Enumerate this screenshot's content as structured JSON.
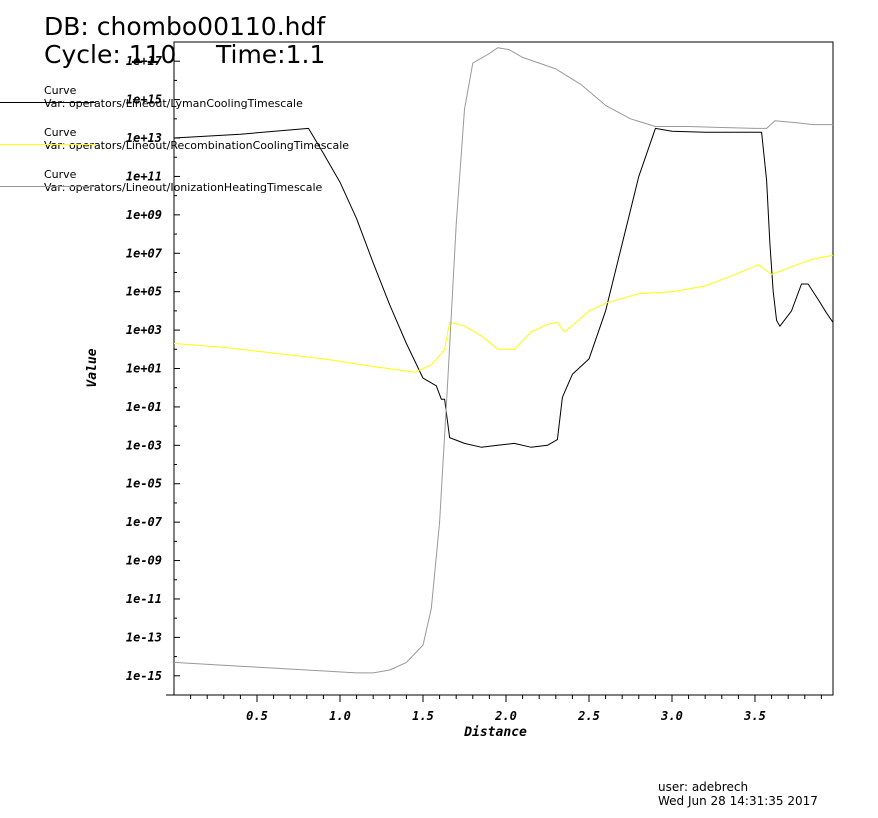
{
  "header": {
    "db": "DB: chombo00110.hdf",
    "cycle": "Cycle: 110",
    "time": "Time:1.1"
  },
  "legend": [
    {
      "label": "Curve",
      "var": "Var: operators/Lineout/LymanCoolingTimescale",
      "color": "#000000"
    },
    {
      "label": "Curve",
      "var": "Var: operators/Lineout/RecombinationCoolingTimescale",
      "color": "#ffff00"
    },
    {
      "label": "Curve",
      "var": "Var: operators/Lineout/IonizationHeatingTimescale",
      "color": "#999999"
    }
  ],
  "footer": {
    "user": "user: adebrech",
    "date": "Wed Jun 28 14:31:35 2017"
  },
  "chart_data": {
    "type": "line",
    "xlabel": "Distance",
    "ylabel": "Value",
    "xlim": [
      0.0,
      3.97
    ],
    "ylim_log10": [
      -16,
      18
    ],
    "yscale": "log",
    "x_ticks": [
      0.5,
      1.0,
      1.5,
      2.0,
      2.5,
      3.0,
      3.5
    ],
    "x_tick_labels": [
      "0.5",
      "1.0",
      "1.5",
      "2.0",
      "2.5",
      "3.0",
      "3.5"
    ],
    "y_ticks_log10": [
      -15,
      -13,
      -11,
      -9,
      -7,
      -5,
      -3,
      -1,
      1,
      3,
      5,
      7,
      9,
      11,
      13,
      15,
      17
    ],
    "y_tick_labels": [
      "1e-15",
      "1e-13",
      "1e-11",
      "1e-09",
      "1e-07",
      "1e-05",
      "1e-03",
      "1e-01",
      "1e+01",
      "1e+03",
      "1e+05",
      "1e+07",
      "1e+09",
      "1e+11",
      "1e+13",
      "1e+15",
      "1e+17"
    ],
    "grid": false,
    "series": [
      {
        "var": "LymanCoolingTimescale",
        "color": "#000000",
        "points": [
          [
            0.0,
            13.0
          ],
          [
            0.4,
            13.2
          ],
          [
            0.81,
            13.5
          ],
          [
            0.9,
            12.2
          ],
          [
            1.0,
            10.7
          ],
          [
            1.1,
            8.8
          ],
          [
            1.2,
            6.5
          ],
          [
            1.3,
            4.3
          ],
          [
            1.4,
            2.3
          ],
          [
            1.5,
            0.5
          ],
          [
            1.58,
            0.1
          ],
          [
            1.61,
            -0.6
          ],
          [
            1.63,
            -0.6
          ],
          [
            1.66,
            -2.6
          ],
          [
            1.75,
            -2.9
          ],
          [
            1.85,
            -3.1
          ],
          [
            1.95,
            -3.0
          ],
          [
            2.05,
            -2.9
          ],
          [
            2.15,
            -3.1
          ],
          [
            2.25,
            -3.0
          ],
          [
            2.31,
            -2.7
          ],
          [
            2.34,
            -0.5
          ],
          [
            2.4,
            0.7
          ],
          [
            2.45,
            1.1
          ],
          [
            2.5,
            1.5
          ],
          [
            2.6,
            4.0
          ],
          [
            2.7,
            7.5
          ],
          [
            2.8,
            11.0
          ],
          [
            2.9,
            13.5
          ],
          [
            3.0,
            13.35
          ],
          [
            3.2,
            13.3
          ],
          [
            3.4,
            13.3
          ],
          [
            3.54,
            13.3
          ],
          [
            3.57,
            10.8
          ],
          [
            3.59,
            7.5
          ],
          [
            3.61,
            5.0
          ],
          [
            3.63,
            3.5
          ],
          [
            3.65,
            3.2
          ],
          [
            3.72,
            4.0
          ],
          [
            3.78,
            5.4
          ],
          [
            3.82,
            5.4
          ],
          [
            3.88,
            4.6
          ],
          [
            3.93,
            3.9
          ],
          [
            3.97,
            3.4
          ]
        ]
      },
      {
        "var": "RecombinationCoolingTimescale",
        "color": "#ffff00",
        "points": [
          [
            0.0,
            2.3
          ],
          [
            0.3,
            2.1
          ],
          [
            0.6,
            1.8
          ],
          [
            0.9,
            1.5
          ],
          [
            1.2,
            1.1
          ],
          [
            1.45,
            0.8
          ],
          [
            1.55,
            1.2
          ],
          [
            1.63,
            2.0
          ],
          [
            1.66,
            3.4
          ],
          [
            1.75,
            3.2
          ],
          [
            1.85,
            2.7
          ],
          [
            1.95,
            2.0
          ],
          [
            2.05,
            2.0
          ],
          [
            2.15,
            2.9
          ],
          [
            2.25,
            3.3
          ],
          [
            2.31,
            3.4
          ],
          [
            2.35,
            2.9
          ],
          [
            2.42,
            3.4
          ],
          [
            2.5,
            4.0
          ],
          [
            2.6,
            4.4
          ],
          [
            2.8,
            4.9
          ],
          [
            3.0,
            5.0
          ],
          [
            3.2,
            5.3
          ],
          [
            3.35,
            5.8
          ],
          [
            3.52,
            6.4
          ],
          [
            3.6,
            5.9
          ],
          [
            3.75,
            6.4
          ],
          [
            3.85,
            6.7
          ],
          [
            3.97,
            6.9
          ]
        ]
      },
      {
        "var": "IonizationHeatingTimescale",
        "color": "#999999",
        "points": [
          [
            0.0,
            -14.3
          ],
          [
            0.4,
            -14.5
          ],
          [
            0.8,
            -14.7
          ],
          [
            1.1,
            -14.85
          ],
          [
            1.2,
            -14.85
          ],
          [
            1.3,
            -14.7
          ],
          [
            1.4,
            -14.3
          ],
          [
            1.5,
            -13.4
          ],
          [
            1.55,
            -11.5
          ],
          [
            1.6,
            -7.0
          ],
          [
            1.65,
            0.5
          ],
          [
            1.7,
            8.5
          ],
          [
            1.75,
            14.5
          ],
          [
            1.8,
            16.9
          ],
          [
            1.9,
            17.4
          ],
          [
            1.95,
            17.7
          ],
          [
            2.02,
            17.6
          ],
          [
            2.1,
            17.2
          ],
          [
            2.3,
            16.6
          ],
          [
            2.45,
            15.8
          ],
          [
            2.6,
            14.7
          ],
          [
            2.75,
            14.0
          ],
          [
            2.9,
            13.6
          ],
          [
            3.1,
            13.6
          ],
          [
            3.3,
            13.55
          ],
          [
            3.5,
            13.5
          ],
          [
            3.57,
            13.5
          ],
          [
            3.62,
            13.9
          ],
          [
            3.75,
            13.8
          ],
          [
            3.85,
            13.7
          ],
          [
            3.97,
            13.7
          ]
        ]
      }
    ]
  }
}
